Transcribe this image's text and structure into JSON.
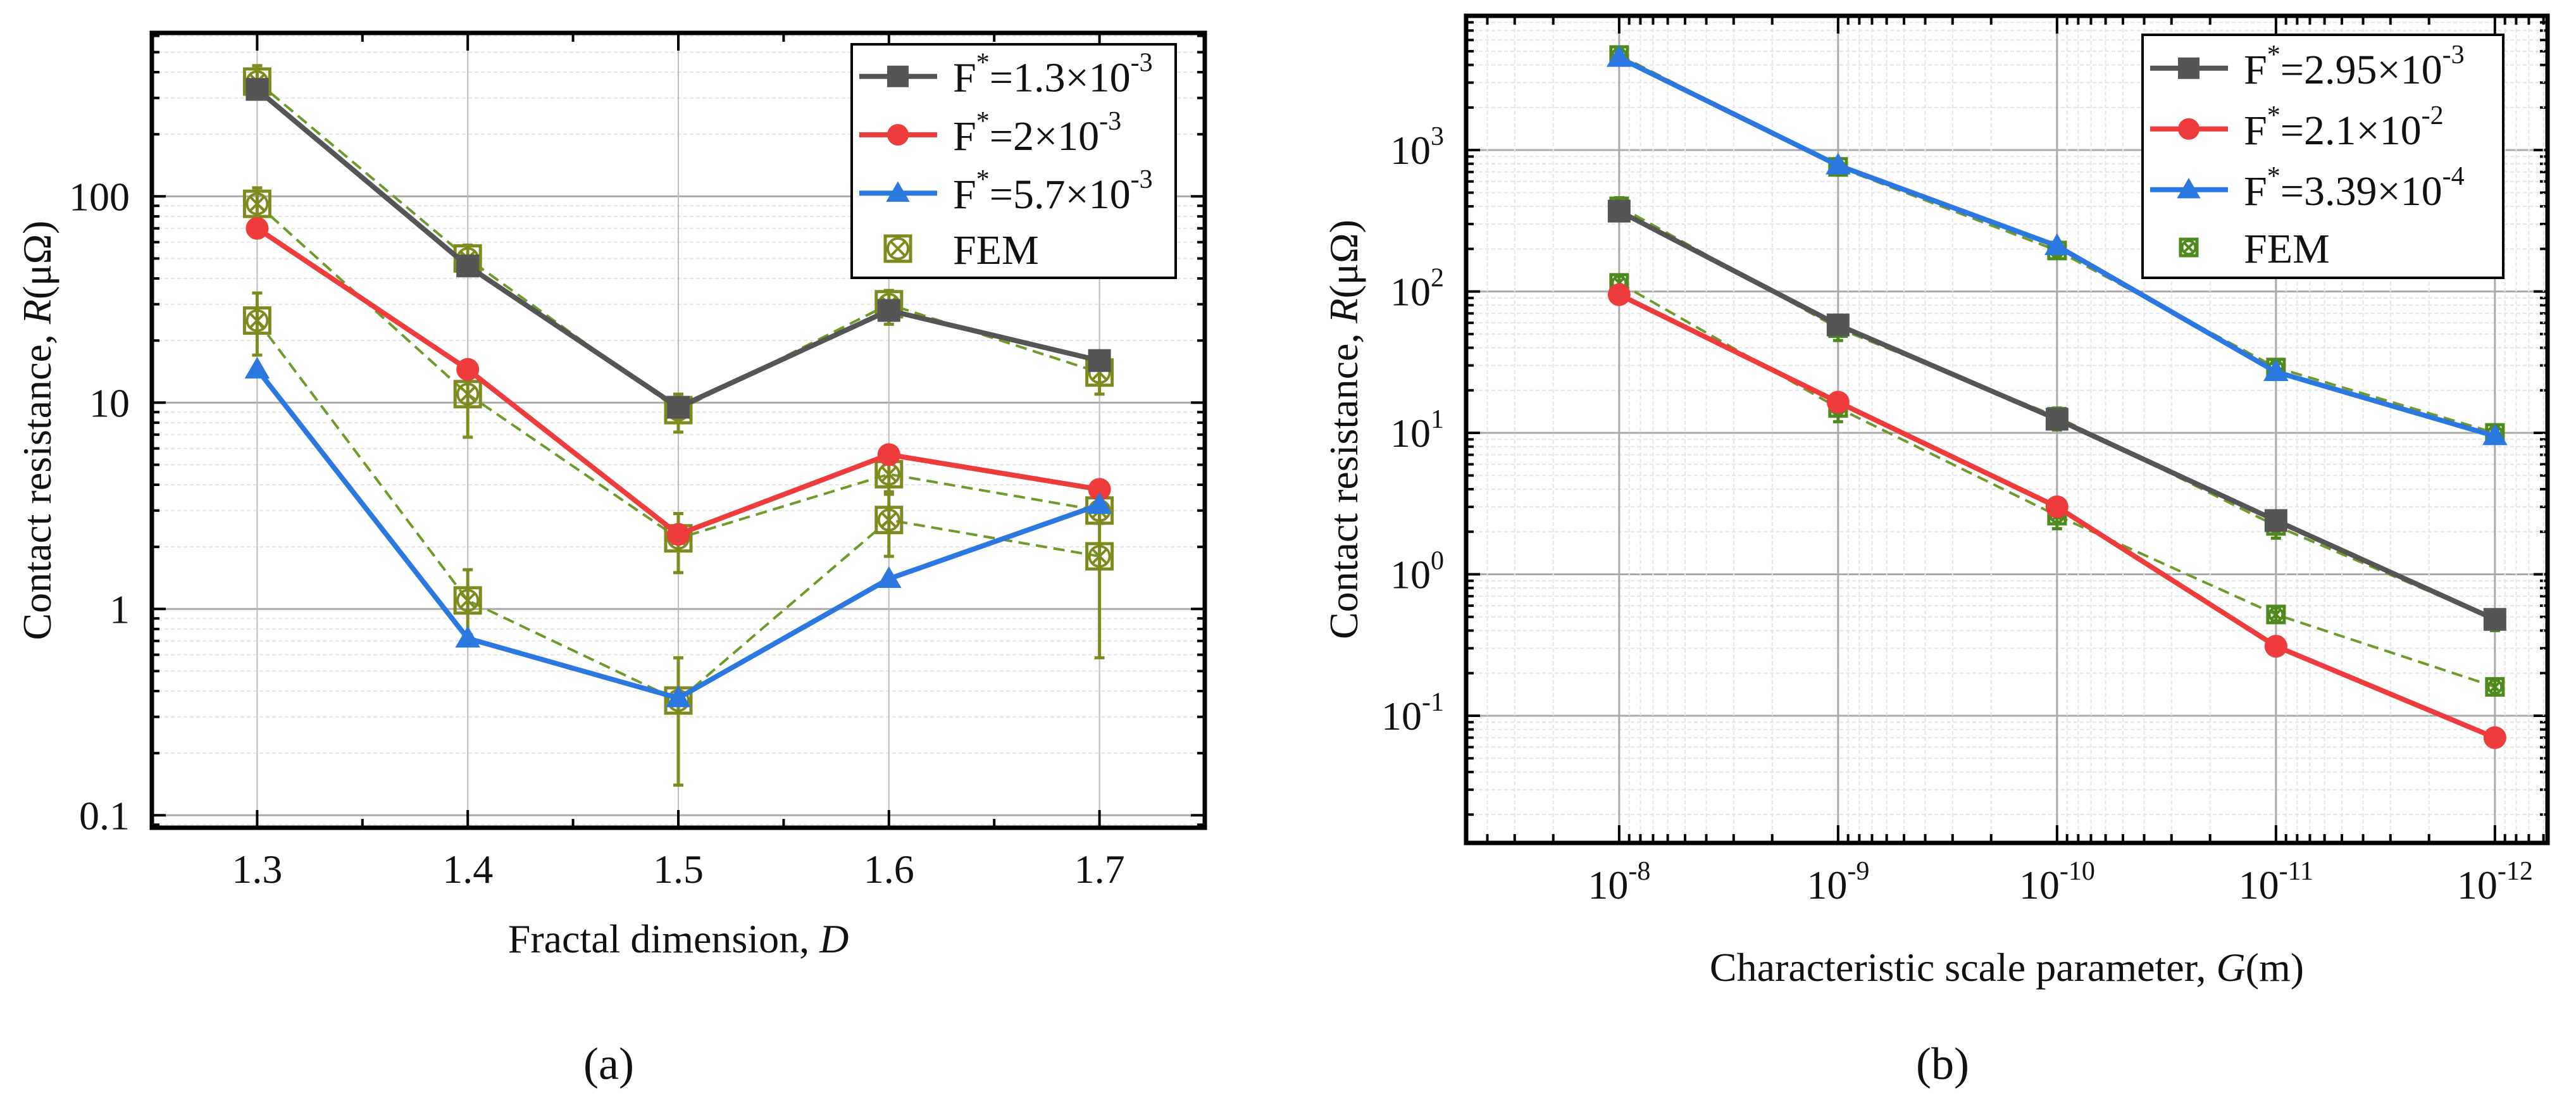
{
  "colors": {
    "gray": "#555555",
    "red": "#ee3b3b",
    "blue": "#2a78e0",
    "fem_a": "#7f8a1e",
    "fem_b": "#4f8a1e",
    "fem_dash": "#6f9a2a"
  },
  "chart_data": [
    {
      "id": "a",
      "type": "line",
      "panel_label": "(a)",
      "xlabel": "Fractal dimension, ",
      "xlabel_italic": "D",
      "ylabel": "Contact resistance, ",
      "ylabel_italic": "R",
      "ylabel_unit": "(μΩ)",
      "xscale": "linear",
      "yscale": "log",
      "xlim": [
        1.25,
        1.75
      ],
      "ylim": [
        0.087,
        620
      ],
      "grid": true,
      "legend_position": "top-right",
      "x": [
        1.3,
        1.4,
        1.5,
        1.6,
        1.7
      ],
      "xticks": [
        {
          "v": 1.3,
          "label": "1.3"
        },
        {
          "v": 1.4,
          "label": "1.4"
        },
        {
          "v": 1.5,
          "label": "1.5"
        },
        {
          "v": 1.6,
          "label": "1.6"
        },
        {
          "v": 1.7,
          "label": "1.7"
        }
      ],
      "yticks": [
        {
          "v": 0.1,
          "label": "0.1"
        },
        {
          "v": 1,
          "label": "1"
        },
        {
          "v": 10,
          "label": "10"
        },
        {
          "v": 100,
          "label": "100"
        }
      ],
      "series": [
        {
          "name": "F*=1.3×10^-3",
          "label": {
            "base": "F",
            "sup1": "*",
            "mid": "=1.3×10",
            "sup2": "-3"
          },
          "color": "gray",
          "marker": "square",
          "values": [
            330,
            46,
            9.5,
            28,
            16
          ]
        },
        {
          "name": "F*=2×10^-3",
          "label": {
            "base": "F",
            "sup1": "*",
            "mid": "=2×10",
            "sup2": "-3"
          },
          "color": "red",
          "marker": "circle",
          "values": [
            70,
            14.5,
            2.3,
            5.6,
            3.8
          ]
        },
        {
          "name": "F*=5.7×10^-3",
          "label": {
            "base": "F",
            "sup1": "*",
            "mid": "=5.7×10",
            "sup2": "-3"
          },
          "color": "blue",
          "marker": "triangle",
          "values": [
            14.5,
            0.72,
            0.37,
            1.4,
            3.2
          ]
        }
      ],
      "fem": {
        "legend": "FEM",
        "color": "fem_a",
        "series": [
          {
            "values": [
              360,
              50,
              9.2,
              30,
              14
            ],
            "err": [
              [
                300,
                430
              ],
              [
                42,
                58
              ],
              [
                7.2,
                11
              ],
              [
                24,
                35
              ],
              [
                11,
                16
              ]
            ]
          },
          {
            "values": [
              92,
              11,
              2.2,
              4.5,
              3.0
            ],
            "err": [
              [
                75,
                110
              ],
              [
                6.8,
                15
              ],
              [
                1.5,
                2.9
              ],
              [
                3.7,
                5.2
              ],
              [
                2.6,
                3.6
              ]
            ]
          },
          {
            "values": [
              25,
              1.1,
              0.36,
              2.7,
              1.8
            ],
            "err": [
              [
                17,
                34
              ],
              [
                0.75,
                1.55
              ],
              [
                0.14,
                0.58
              ],
              [
                1.8,
                3.6
              ],
              [
                0.58,
                3.2
              ]
            ]
          }
        ]
      }
    },
    {
      "id": "b",
      "type": "line",
      "panel_label": "(b)",
      "xlabel": "Characteristic scale parameter, ",
      "xlabel_italic": "G",
      "xlabel_unit": "(m)",
      "ylabel": "Contact resistance, ",
      "ylabel_italic": "R",
      "ylabel_unit": "(μΩ)",
      "xscale": "log-reversed",
      "yscale": "log",
      "xlim": [
        5e-08,
        5.75e-13
      ],
      "ylim": [
        0.0126,
        8900
      ],
      "grid": true,
      "legend_position": "top-right",
      "x": [
        1e-08,
        1e-09,
        1e-10,
        1e-11,
        1e-12
      ],
      "xticks": [
        {
          "v": 1e-08,
          "base": "10",
          "exp": "-8"
        },
        {
          "v": 1e-09,
          "base": "10",
          "exp": "-9"
        },
        {
          "v": 1e-10,
          "base": "10",
          "exp": "-10"
        },
        {
          "v": 1e-11,
          "base": "10",
          "exp": "-11"
        },
        {
          "v": 1e-12,
          "base": "10",
          "exp": "-12"
        }
      ],
      "yticks": [
        {
          "v": 0.1,
          "base": "10",
          "exp": "-1"
        },
        {
          "v": 1,
          "base": "10",
          "exp": "0"
        },
        {
          "v": 10,
          "base": "10",
          "exp": "1"
        },
        {
          "v": 100,
          "base": "10",
          "exp": "2"
        },
        {
          "v": 1000,
          "base": "10",
          "exp": "3"
        }
      ],
      "series": [
        {
          "name": "F*=2.95×10^-3",
          "label": {
            "base": "F",
            "sup1": "*",
            "mid": "=2.95×10",
            "sup2": "-3"
          },
          "color": "gray",
          "marker": "square",
          "values": [
            370,
            58,
            12.5,
            2.4,
            0.48
          ]
        },
        {
          "name": "F*=2.1×10^-2",
          "label": {
            "base": "F",
            "sup1": "*",
            "mid": "=2.1×10",
            "sup2": "-2"
          },
          "color": "red",
          "marker": "circle",
          "values": [
            95,
            16.5,
            3.0,
            0.31,
            0.07
          ]
        },
        {
          "name": "F*=3.39×10^-4",
          "label": {
            "base": "F",
            "sup1": "*",
            "mid": "=3.39×10",
            "sup2": "-4"
          },
          "color": "blue",
          "marker": "triangle",
          "values": [
            4500,
            780,
            210,
            27,
            9.5
          ]
        }
      ],
      "fem": {
        "legend": "FEM",
        "color": "fem_b",
        "series": [
          {
            "values": [
              400,
              55,
              13,
              2.2,
              0.48
            ],
            "err": [
              [
                340,
                460
              ],
              [
                45,
                65
              ],
              [
                10.5,
                15
              ],
              [
                1.8,
                2.7
              ],
              [
                0.4,
                0.56
              ]
            ]
          },
          {
            "values": [
              115,
              15,
              2.6,
              0.52,
              0.16
            ],
            "err": [
              [
                100,
                130
              ],
              [
                12,
                18
              ],
              [
                2.1,
                3.1
              ],
              [
                0.46,
                0.58
              ],
              [
                0.14,
                0.18
              ]
            ]
          },
          {
            "values": [
              4700,
              760,
              195,
              29,
              10
            ],
            "err": [
              [
                4300,
                5100
              ],
              [
                700,
                820
              ],
              [
                180,
                210
              ],
              [
                26,
                32
              ],
              [
                9,
                11
              ]
            ]
          }
        ]
      }
    }
  ]
}
